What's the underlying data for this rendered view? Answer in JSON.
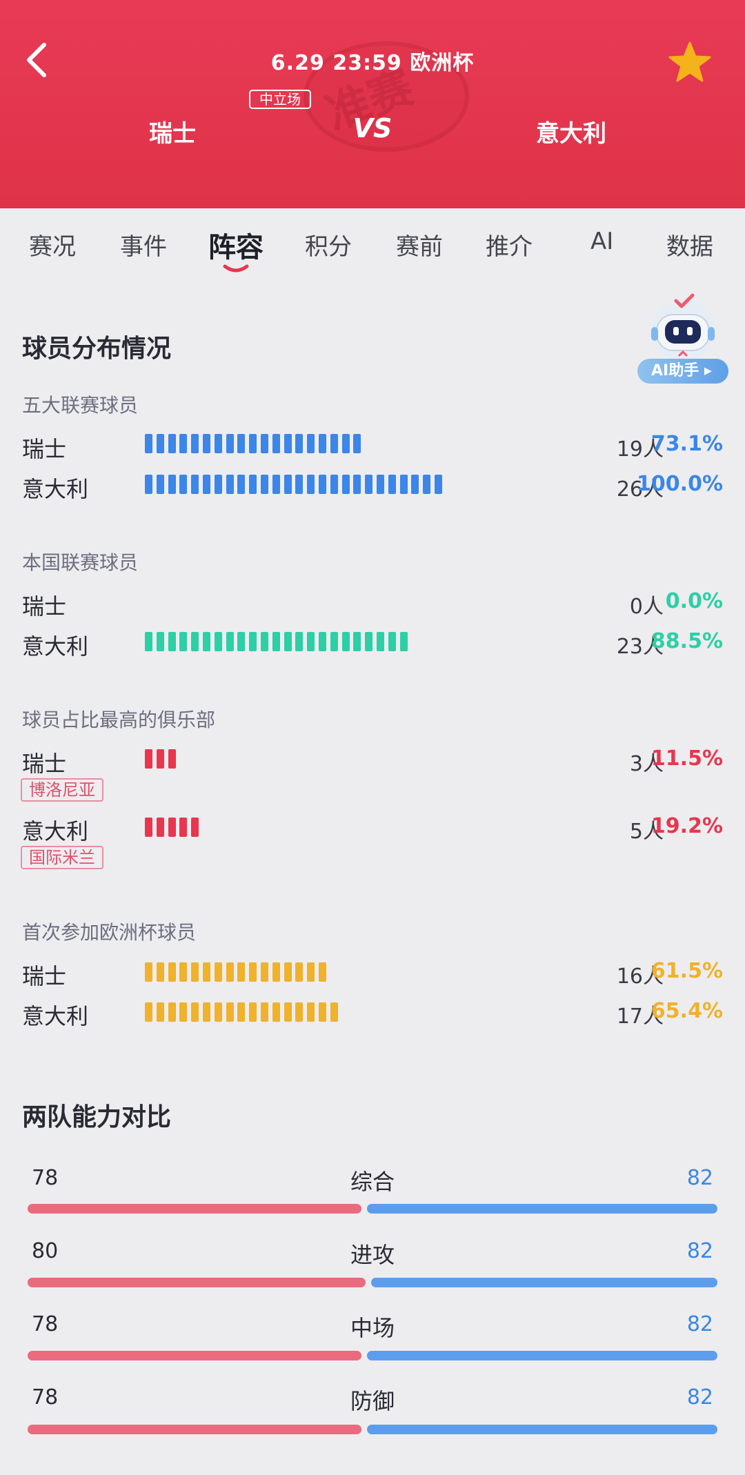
{
  "header": {
    "match_info": "6.29 23:59 欧洲杯",
    "neutral_label": "中立场",
    "home_team": "瑞士",
    "vs": "VS",
    "away_team": "意大利",
    "watermark_text": "准赛",
    "bg_color": "#e83a55",
    "star_color": "#f5b31b"
  },
  "tabs": [
    {
      "label": "赛况",
      "active": false
    },
    {
      "label": "事件",
      "active": false
    },
    {
      "label": "阵容",
      "active": true
    },
    {
      "label": "积分",
      "active": false
    },
    {
      "label": "赛前",
      "active": false
    },
    {
      "label": "推介",
      "active": false
    },
    {
      "label": "AI",
      "active": false
    },
    {
      "label": "数据",
      "active": false
    }
  ],
  "ai_helper": {
    "label": "AI助手"
  },
  "distribution": {
    "title": "球员分布情况",
    "groups": [
      {
        "label": "五大联赛球员",
        "color": "#3b86e8",
        "rows": [
          {
            "team": "瑞士",
            "count": "19人",
            "pct": "73.1%",
            "segments": 19
          },
          {
            "team": "意大利",
            "count": "26人",
            "pct": "100.0%",
            "segments": 26
          }
        ]
      },
      {
        "label": "本国联赛球员",
        "color": "#2ccfa6",
        "rows": [
          {
            "team": "瑞士",
            "count": "0人",
            "pct": "0.0%",
            "segments": 0
          },
          {
            "team": "意大利",
            "count": "23人",
            "pct": "88.5%",
            "segments": 23
          }
        ]
      },
      {
        "label": "球员占比最高的俱乐部",
        "color": "#e8364f",
        "rows": [
          {
            "team": "瑞士",
            "count": "3人",
            "pct": "11.5%",
            "segments": 3,
            "club": "博洛尼亚"
          },
          {
            "team": "意大利",
            "count": "5人",
            "pct": "19.2%",
            "segments": 5,
            "club": "国际米兰"
          }
        ]
      },
      {
        "label": "首次参加欧洲杯球员",
        "color": "#f0b12b",
        "rows": [
          {
            "team": "瑞士",
            "count": "16人",
            "pct": "61.5%",
            "segments": 16
          },
          {
            "team": "意大利",
            "count": "17人",
            "pct": "65.4%",
            "segments": 17
          }
        ]
      }
    ]
  },
  "comparison": {
    "title": "两队能力对比",
    "home_color": "#ea6a7e",
    "away_color": "#5c9ded",
    "rows": [
      {
        "label": "综合",
        "home": "78",
        "away": "82"
      },
      {
        "label": "进攻",
        "home": "80",
        "away": "82"
      },
      {
        "label": "中场",
        "home": "78",
        "away": "82"
      },
      {
        "label": "防御",
        "home": "78",
        "away": "82"
      }
    ]
  }
}
